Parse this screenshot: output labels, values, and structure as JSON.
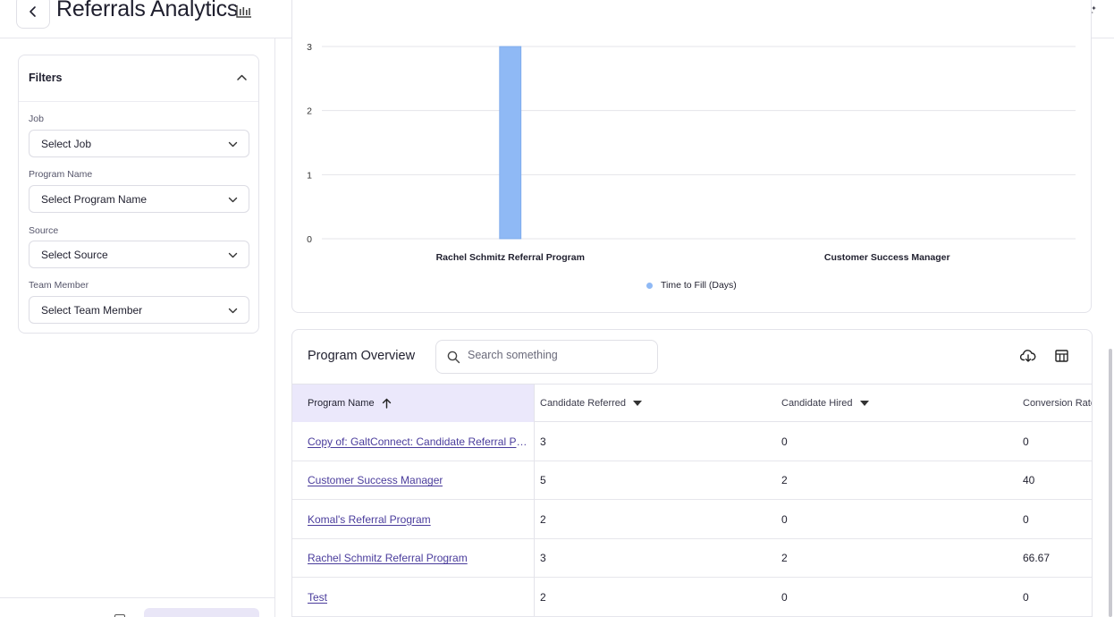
{
  "header": {
    "title": "Referrals Analytics",
    "back_icon": "chevron-left-icon",
    "title_icon": "bar-chart-icon",
    "ai_icon": "sparkle-icon"
  },
  "filters": {
    "title": "Filters",
    "fields": [
      {
        "label": "Job",
        "value": "Select Job"
      },
      {
        "label": "Program Name",
        "value": "Select Program Name"
      },
      {
        "label": "Source",
        "value": "Select Source"
      },
      {
        "label": "Team Member",
        "value": "Select Team Member"
      }
    ]
  },
  "chart_data": {
    "type": "bar",
    "categories": [
      "Rachel Schmitz Referral Program",
      "Customer Success Manager"
    ],
    "series": [
      {
        "name": "Time to Fill (Days)",
        "values": [
          3,
          0
        ]
      }
    ],
    "yticks": [
      0,
      1,
      2,
      3
    ],
    "ylim": [
      0,
      3
    ],
    "grid": true,
    "legend_position": "bottom",
    "bar_color": "#8fb9f5"
  },
  "table": {
    "title": "Program Overview",
    "search_placeholder": "Search something",
    "columns": [
      "Program Name",
      "Candidate Referred",
      "Candidate Hired",
      "Conversion Rate"
    ],
    "rows": [
      {
        "name": "Copy of: GaltConnect: Candidate Referral Program",
        "referred": "3",
        "hired": "0",
        "conversion": "0"
      },
      {
        "name": "Customer Success Manager",
        "referred": "5",
        "hired": "2",
        "conversion": "40"
      },
      {
        "name": "Komal's Referral Program",
        "referred": "2",
        "hired": "0",
        "conversion": "0"
      },
      {
        "name": "Rachel Schmitz Referral Program",
        "referred": "3",
        "hired": "2",
        "conversion": "66.67"
      },
      {
        "name": "Test",
        "referred": "2",
        "hired": "0",
        "conversion": "0"
      }
    ]
  },
  "colors": {
    "accent": "#4a3c9c",
    "header_highlight": "#ebe8fb",
    "bar": "#8fb9f5"
  }
}
